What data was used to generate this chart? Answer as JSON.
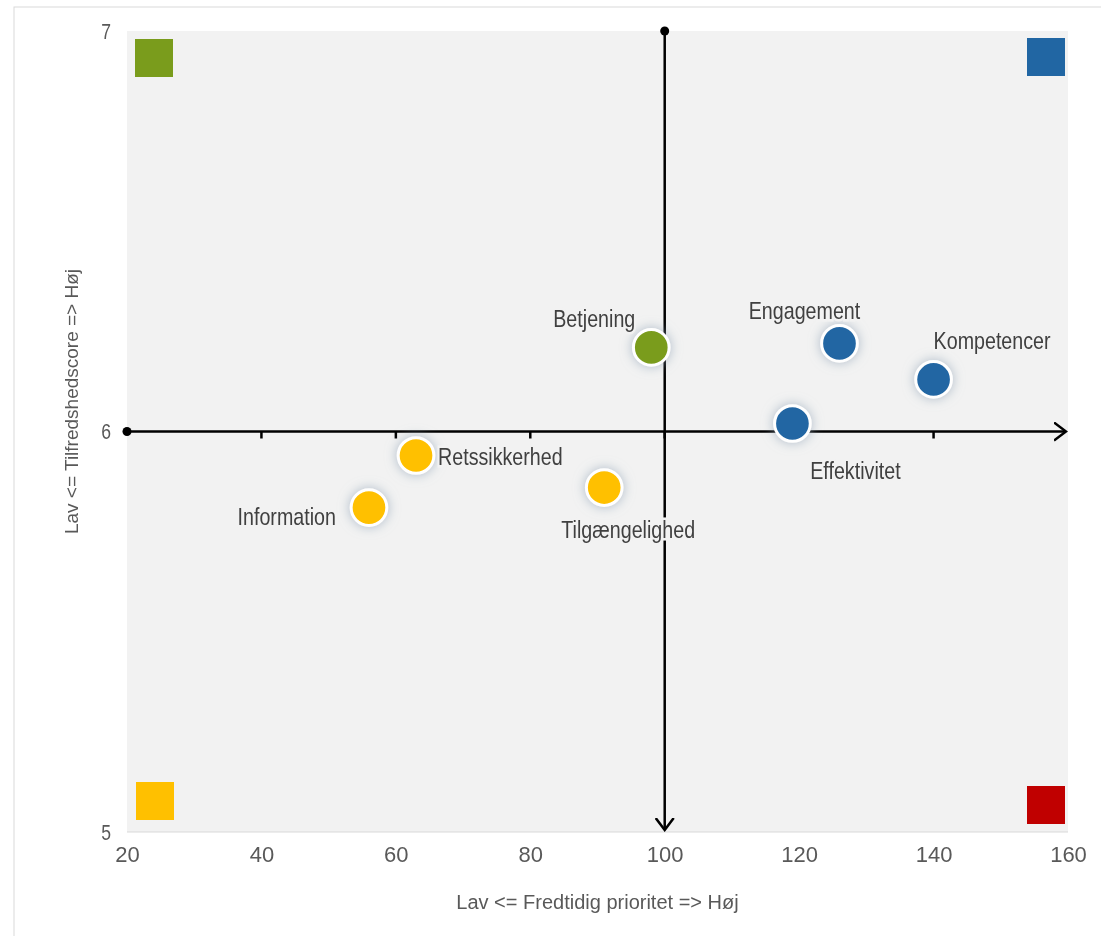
{
  "chart_data": {
    "type": "scatter",
    "xlabel": "Lav <= Fredtidig prioritet => Høj",
    "ylabel": "Lav <= Tilfredshedscore => Høj",
    "xlim": [
      20,
      160
    ],
    "xticks": [
      20,
      40,
      60,
      80,
      100,
      120,
      140,
      160
    ],
    "ylim": [
      5,
      7
    ],
    "yticks": [
      5,
      6,
      7
    ],
    "marker": "circle",
    "grid": false,
    "legend": false,
    "ref_lines": [
      {
        "axis": "x",
        "value": 100,
        "color": "#000000"
      },
      {
        "axis": "y",
        "value": 6,
        "color": "#000000"
      }
    ],
    "series": [
      {
        "name": "Betjening",
        "color": "#7a9c1c",
        "x": [
          98
        ],
        "values": [
          6.21
        ]
      },
      {
        "name": "Engagement",
        "color": "#2166a3",
        "x": [
          126
        ],
        "values": [
          6.22
        ]
      },
      {
        "name": "Kompetencer",
        "color": "#2166a3",
        "x": [
          140
        ],
        "values": [
          6.13
        ]
      },
      {
        "name": "Effektivitet",
        "color": "#2166a3",
        "x": [
          119
        ],
        "values": [
          6.02
        ]
      },
      {
        "name": "Retssikkerhed",
        "color": "#ffc000",
        "x": [
          63
        ],
        "values": [
          5.94
        ]
      },
      {
        "name": "Information",
        "color": "#ffc000",
        "x": [
          56
        ],
        "values": [
          5.81
        ]
      },
      {
        "name": "Tilgængelighed",
        "color": "#ffc000",
        "x": [
          91
        ],
        "values": [
          5.86
        ]
      }
    ]
  }
}
